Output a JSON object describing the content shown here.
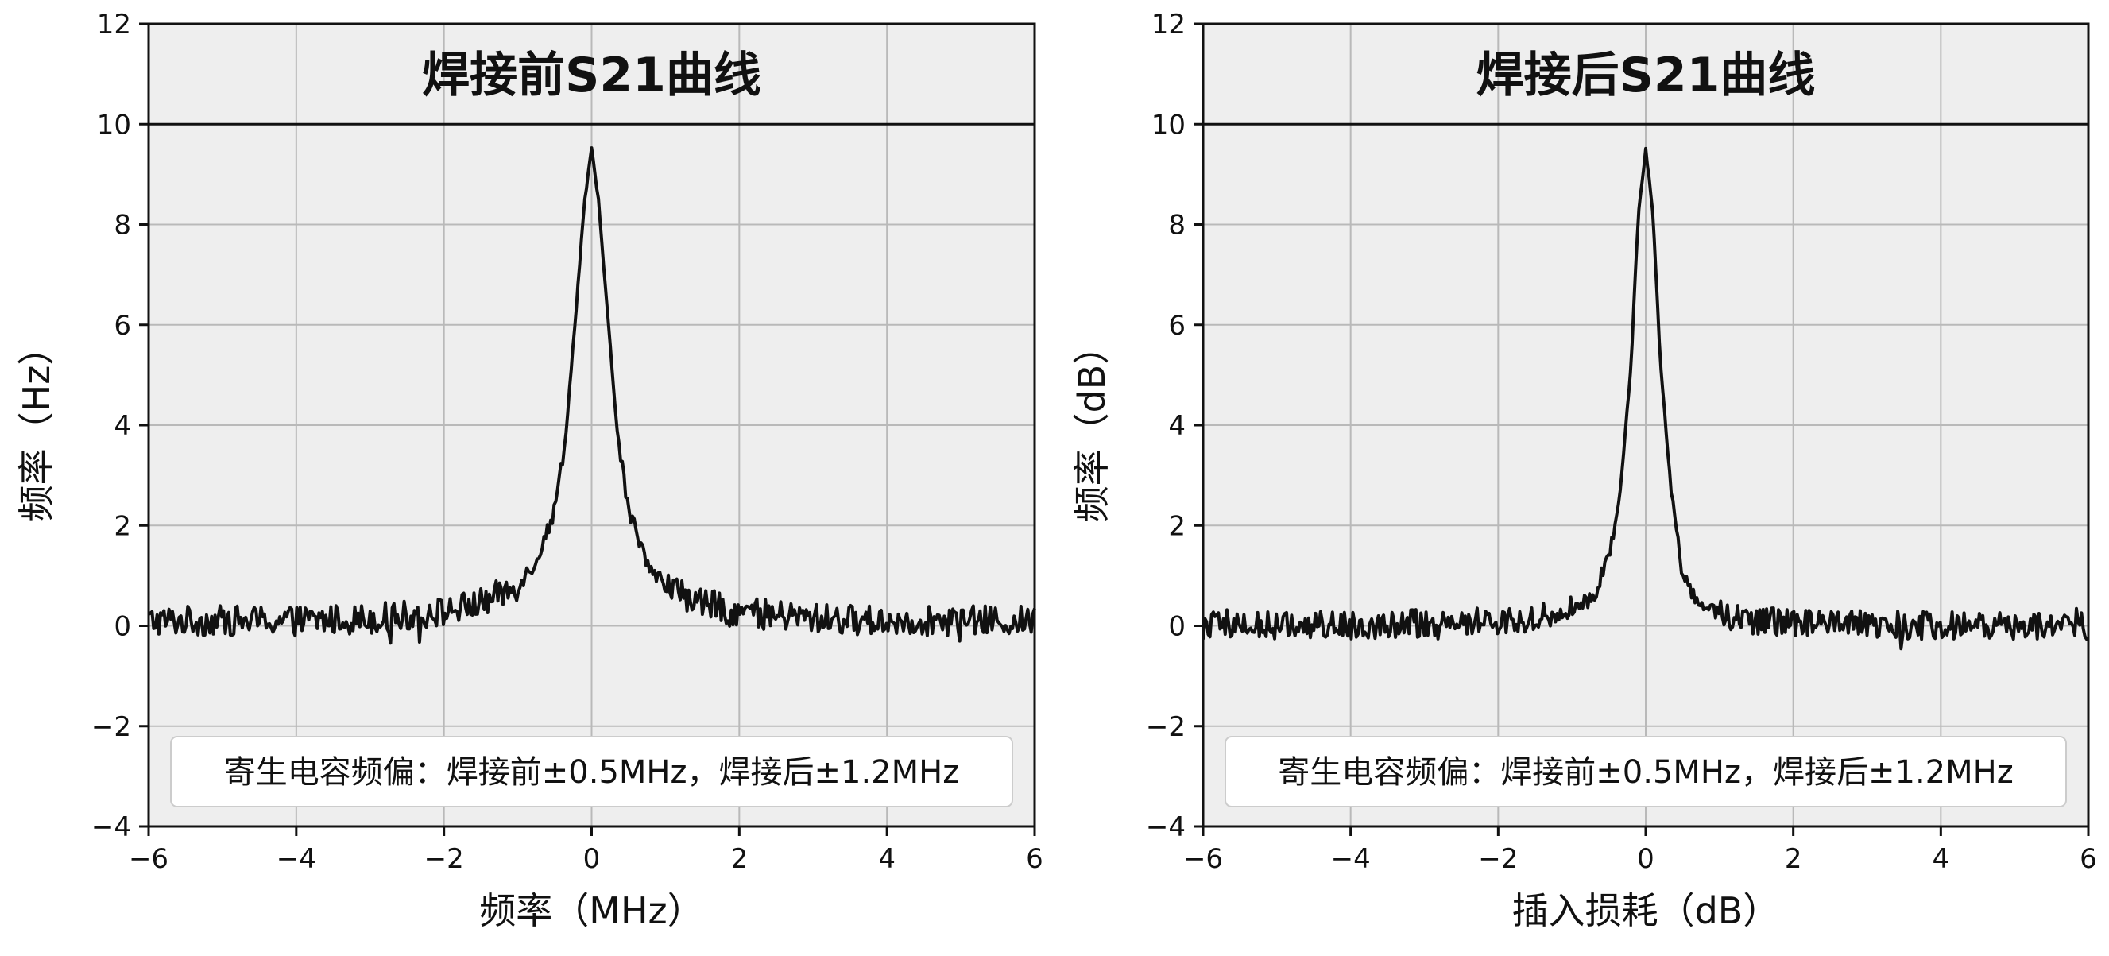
{
  "chart_data": [
    {
      "type": "line",
      "title": "焊接前S21曲线",
      "xlabel": "频率（MHz）",
      "ylabel": "频率（Hz）",
      "xlim": [
        -6,
        6
      ],
      "ylim": [
        -4,
        12
      ],
      "xticks": [
        -6,
        -4,
        -2,
        0,
        2,
        4,
        6
      ],
      "yticks": [
        -4,
        -2,
        0,
        2,
        4,
        6,
        8,
        10,
        12
      ],
      "grid": true,
      "reference_line_y": 10,
      "annotation": "寄生电容频偏：焊接前±0.5MHz，焊接后±1.2MHz",
      "annotation_position": "bottom-center",
      "series": [
        {
          "peak_x": 0,
          "peak_y": 9.5,
          "half_width_mhz": 0.28,
          "baseline": 0.1,
          "noise": 0.3,
          "x": [
            -6,
            -5.5,
            -5,
            -4.5,
            -4,
            -3.5,
            -3,
            -2.5,
            -2,
            -1.5,
            -1,
            -0.75,
            -0.5,
            -0.35,
            -0.2,
            -0.1,
            0,
            0.1,
            0.2,
            0.35,
            0.5,
            0.75,
            1,
            1.5,
            2,
            2.5,
            3,
            3.5,
            4,
            4.5,
            5,
            5.5,
            6
          ],
          "y": [
            0.1,
            0.1,
            0.1,
            0.1,
            0.1,
            0.12,
            0.15,
            0.2,
            0.28,
            0.45,
            0.8,
            1.3,
            2.3,
            3.8,
            6.5,
            8.4,
            9.5,
            8.4,
            6.5,
            3.8,
            2.3,
            1.3,
            0.8,
            0.45,
            0.28,
            0.2,
            0.15,
            0.12,
            0.1,
            0.1,
            0.1,
            0.1,
            0.1
          ]
        }
      ]
    },
    {
      "type": "line",
      "title": "焊接后S21曲线",
      "xlabel": "插入损耗（dB）",
      "ylabel": "频率（dB）",
      "xlim": [
        -6,
        6
      ],
      "ylim": [
        -4,
        12
      ],
      "xticks": [
        -6,
        -4,
        -2,
        0,
        2,
        4,
        6
      ],
      "yticks": [
        -4,
        -2,
        0,
        2,
        4,
        6,
        8,
        10,
        12
      ],
      "grid": true,
      "reference_line_y": 10,
      "annotation": "寄生电容频偏：焊接前±0.5MHz，焊接后±1.2MHz",
      "annotation_position": "bottom-center",
      "series": [
        {
          "peak_x": 0,
          "peak_y": 9.5,
          "half_width_mhz": 0.18,
          "baseline": 0.0,
          "noise": 0.28,
          "x": [
            -6,
            -5,
            -4,
            -3,
            -2,
            -1.5,
            -1,
            -0.7,
            -0.5,
            -0.35,
            -0.2,
            -0.1,
            0,
            0.1,
            0.2,
            0.35,
            0.5,
            0.7,
            1,
            1.5,
            2,
            3,
            4,
            5,
            6
          ],
          "y": [
            0,
            0,
            0.02,
            0.05,
            0.1,
            0.15,
            0.3,
            0.6,
            1.4,
            2.6,
            5.2,
            8.2,
            9.5,
            8.2,
            5.2,
            2.6,
            1.0,
            0.5,
            0.25,
            0.1,
            0.05,
            0.02,
            0,
            0,
            0
          ]
        }
      ]
    }
  ]
}
